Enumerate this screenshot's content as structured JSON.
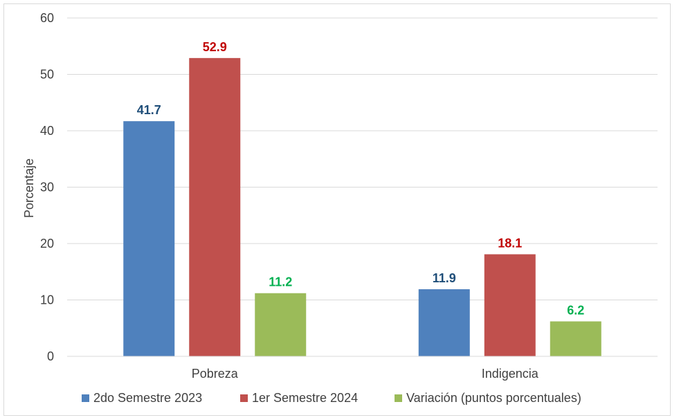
{
  "chart_data": {
    "type": "bar",
    "title": "",
    "xlabel": "",
    "ylabel": "Porcentaje",
    "categories": [
      "Pobreza",
      "Indigencia"
    ],
    "series": [
      {
        "name": "2do Semestre 2023",
        "values": [
          41.7,
          11.9
        ],
        "color": "#4f81bd",
        "label_color": "#1f4e79"
      },
      {
        "name": "1er Semestre 2024",
        "values": [
          52.9,
          18.1
        ],
        "color": "#c0504d",
        "label_color": "#c00000"
      },
      {
        "name": "Variación (puntos porcentuales)",
        "values": [
          11.2,
          6.2
        ],
        "color": "#9bbb59",
        "label_color": "#00b050"
      }
    ],
    "ylim": [
      0,
      60
    ],
    "yticks": [
      0,
      10,
      20,
      30,
      40,
      50,
      60
    ],
    "grid": true,
    "legend_position": "bottom"
  }
}
